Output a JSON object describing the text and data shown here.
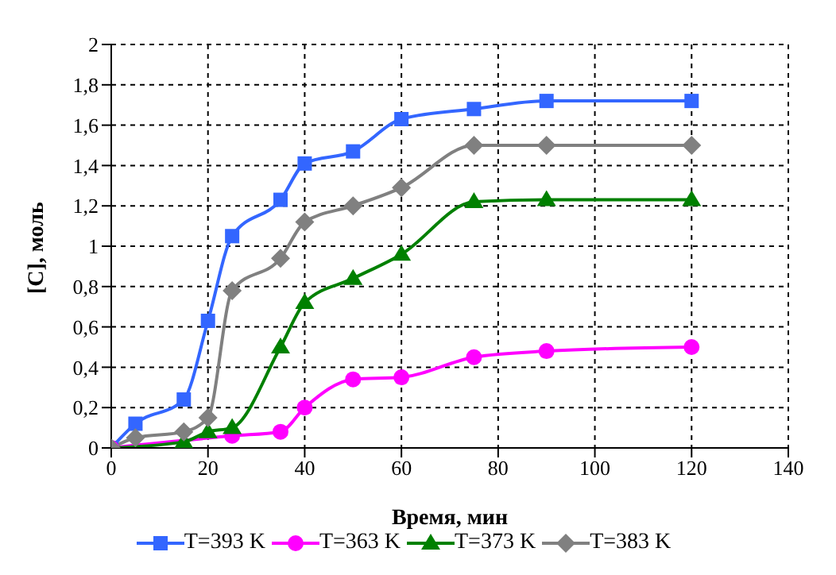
{
  "chart_data": {
    "type": "line",
    "xlabel": "Время, мин",
    "ylabel": "[C], моль",
    "x": [
      0,
      5,
      15,
      20,
      25,
      35,
      40,
      50,
      60,
      75,
      90,
      120
    ],
    "series": [
      {
        "name": "T=393 K",
        "color": "#3366ff",
        "marker": "square",
        "values": [
          0,
          0.12,
          0.24,
          0.63,
          1.05,
          1.23,
          1.41,
          1.47,
          1.63,
          1.68,
          1.72,
          1.72
        ]
      },
      {
        "name": "T=363 K",
        "color": "#ff00ff",
        "marker": "circle",
        "values": [
          0,
          null,
          null,
          null,
          0.06,
          0.08,
          0.2,
          0.34,
          0.35,
          0.45,
          0.48,
          0.5
        ]
      },
      {
        "name": "T=373 K",
        "color": "#008000",
        "marker": "triangle",
        "values": [
          0,
          null,
          0.03,
          0.08,
          0.1,
          0.5,
          0.72,
          0.84,
          0.96,
          1.22,
          1.23,
          1.23
        ]
      },
      {
        "name": "T=383 K",
        "color": "#808080",
        "marker": "diamond",
        "values": [
          0,
          0.05,
          0.08,
          0.15,
          0.78,
          0.94,
          1.12,
          1.2,
          1.29,
          1.5,
          1.5,
          1.5
        ]
      }
    ],
    "xlim": [
      0,
      140
    ],
    "xticks": [
      0,
      20,
      40,
      60,
      80,
      100,
      120,
      140
    ],
    "ylim": [
      0,
      2
    ],
    "yticks": [
      0,
      {
        "value": 0.2,
        "label": "0,2"
      },
      {
        "value": 0.4,
        "label": "0,4"
      },
      {
        "value": 0.6,
        "label": "0,6"
      },
      {
        "value": 0.8,
        "label": "0,8"
      },
      1,
      {
        "value": 1.2,
        "label": "1,2"
      },
      {
        "value": 1.4,
        "label": "1,4"
      },
      {
        "value": 1.6,
        "label": "1,6"
      },
      {
        "value": 1.8,
        "label": "1,8"
      },
      2
    ],
    "grid": true,
    "line_style": "solid",
    "legend": "bottom"
  }
}
